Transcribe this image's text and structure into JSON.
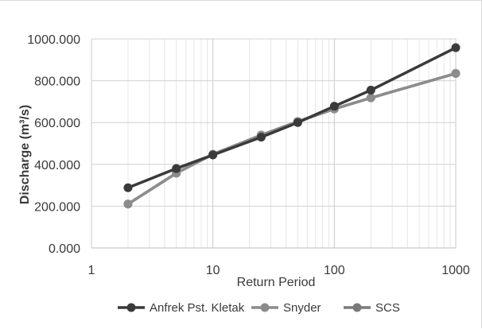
{
  "chart_data": {
    "type": "line",
    "title": "",
    "xlabel": "Return Period",
    "ylabel": "Discharge (m³/s)",
    "x_scale": "log",
    "xlim": [
      1,
      1000
    ],
    "ylim": [
      0,
      1000
    ],
    "x_ticks": [
      1,
      10,
      100,
      1000
    ],
    "x_tick_labels": [
      "1",
      "10",
      "100",
      "1000"
    ],
    "y_ticks": [
      0,
      200,
      400,
      600,
      800,
      1000
    ],
    "y_tick_labels": [
      "0.000",
      "200.000",
      "400.000",
      "600.000",
      "800.000",
      "1000.000"
    ],
    "grid": true,
    "legend_position": "bottom",
    "x": [
      2,
      5,
      10,
      25,
      50,
      100,
      200,
      1000
    ],
    "series": [
      {
        "name": "Anfrek Pst. Kletak",
        "color": "#3a3a3a",
        "values": [
          288,
          380,
          445,
          530,
          600,
          678,
          755,
          958
        ]
      },
      {
        "name": "Snyder",
        "color": "#8c8c8c",
        "values": [
          210,
          358,
          448,
          540,
          605,
          665,
          718,
          835
        ]
      },
      {
        "name": "SCS",
        "color": "#7a7a7a",
        "values": [
          210,
          358,
          448,
          540,
          605,
          665,
          718,
          835
        ]
      }
    ]
  }
}
